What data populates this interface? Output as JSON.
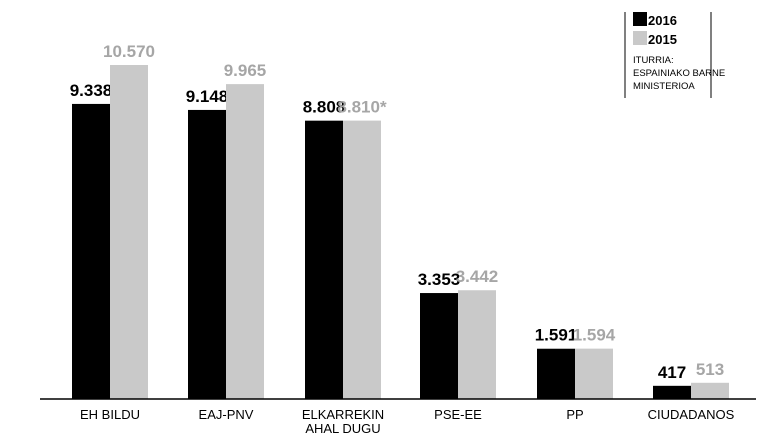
{
  "chart_data": {
    "type": "bar",
    "title": "",
    "xlabel": "",
    "ylabel": "",
    "categories": [
      [
        "EH BILDU"
      ],
      [
        "EAJ-PNV"
      ],
      [
        "ELKARREKIN",
        "AHAL DUGU"
      ],
      [
        "PSE-EE"
      ],
      [
        "PP"
      ],
      [
        "CIUDADANOS"
      ]
    ],
    "series": [
      {
        "name": "2016",
        "color": "#000000",
        "label_color": "#000000",
        "values": [
          9338,
          9148,
          8808,
          3353,
          1591,
          417
        ],
        "labels": [
          "9.338",
          "9.148",
          "8.808",
          "3.353",
          "1.591",
          "417"
        ]
      },
      {
        "name": "2015",
        "color": "#c9c9c9",
        "label_color": "#a6a6a6",
        "values": [
          10570,
          9965,
          8810,
          3442,
          1594,
          513
        ],
        "labels": [
          "10.570",
          "9.965",
          "8.810*",
          "3.442",
          "1.594",
          "513"
        ]
      }
    ],
    "ylim": [
      0,
      11000
    ],
    "grid": false,
    "legend_position": "top-right",
    "source_lines": [
      "ITURRIA:",
      "ESPAINIAKO BARNE",
      "MINISTERIOA"
    ]
  }
}
